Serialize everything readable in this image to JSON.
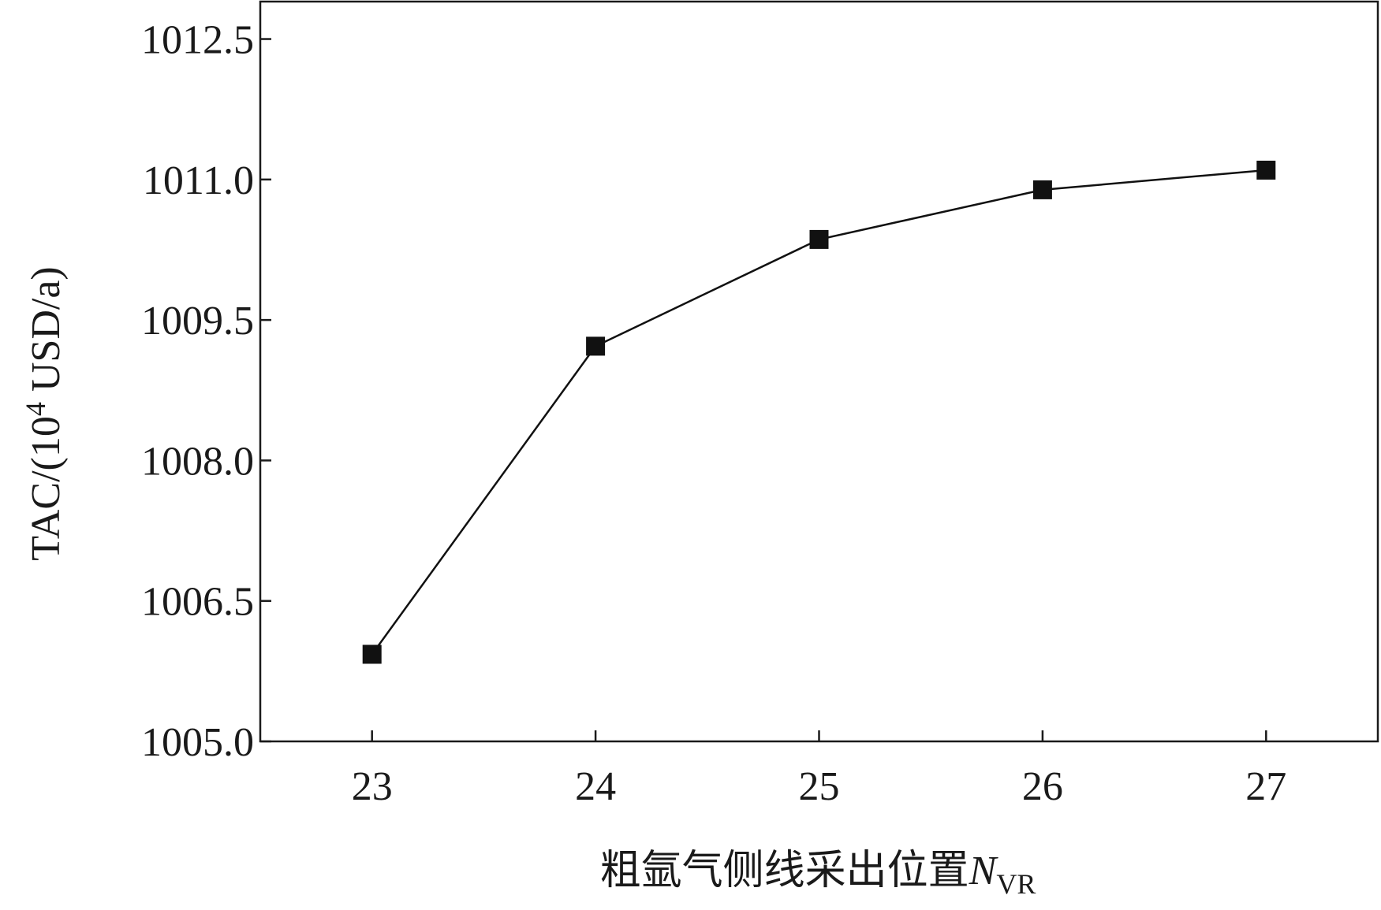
{
  "chart_data": {
    "type": "line",
    "title": "",
    "xlabel": {
      "main": "粗氩气侧线采出位置",
      "symbol": "N",
      "subscript": "VR"
    },
    "ylabel": {
      "prefix": "TAC/(10",
      "superscript": "4",
      "suffix": " USD/a)"
    },
    "x": [
      23,
      24,
      25,
      26,
      27
    ],
    "x_tick_labels": [
      "23",
      "24",
      "25",
      "26",
      "27"
    ],
    "xlim": [
      22.5,
      27.5
    ],
    "y_ticks": [
      1005.0,
      1006.5,
      1008.0,
      1009.5,
      1011.0,
      1012.5
    ],
    "y_tick_labels": [
      "1005.0",
      "1006.5",
      "1008.0",
      "1009.5",
      "1011.0",
      "1012.5"
    ],
    "ylim": [
      1005.0,
      1012.9
    ],
    "series": [
      {
        "values": [
          1005.93,
          1009.22,
          1010.36,
          1010.89,
          1011.1
        ],
        "marker": "square",
        "color": "#111111"
      }
    ],
    "grid": false,
    "legend": "none"
  }
}
